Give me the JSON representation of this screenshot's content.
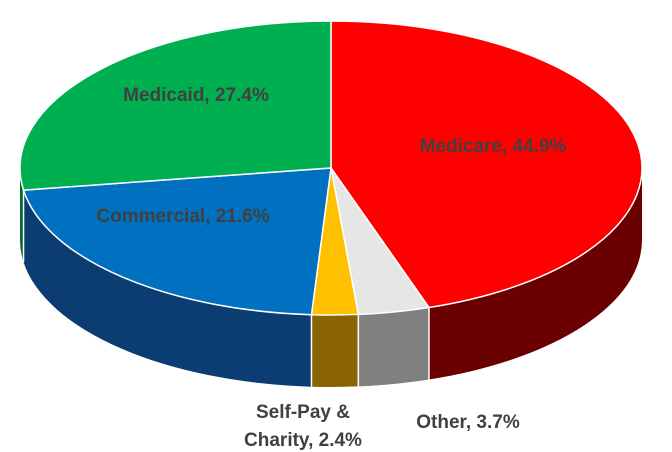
{
  "chart_data": {
    "type": "pie",
    "style": "3d",
    "categories": [
      "Medicare",
      "Other",
      "Self-Pay & Charity",
      "Commercial",
      "Medicaid"
    ],
    "values": [
      44.9,
      3.7,
      2.4,
      21.6,
      27.4
    ],
    "colors": [
      "#ff0000",
      "#e6e6e6",
      "#ffc000",
      "#0070c0",
      "#00b050"
    ],
    "side_colors": [
      "#6b0000",
      "#808080",
      "#8a6400",
      "#0b3d73",
      "#006b2f"
    ],
    "labels": [
      "Medicare, 44.9%",
      "Other, 3.7%",
      "Self-Pay &",
      "Commercial, 21.6%",
      "Medicaid, 27.4%"
    ],
    "labels_line2": [
      "",
      "",
      "Charity, 2.4%",
      "",
      ""
    ],
    "title": "",
    "legend": "none"
  }
}
